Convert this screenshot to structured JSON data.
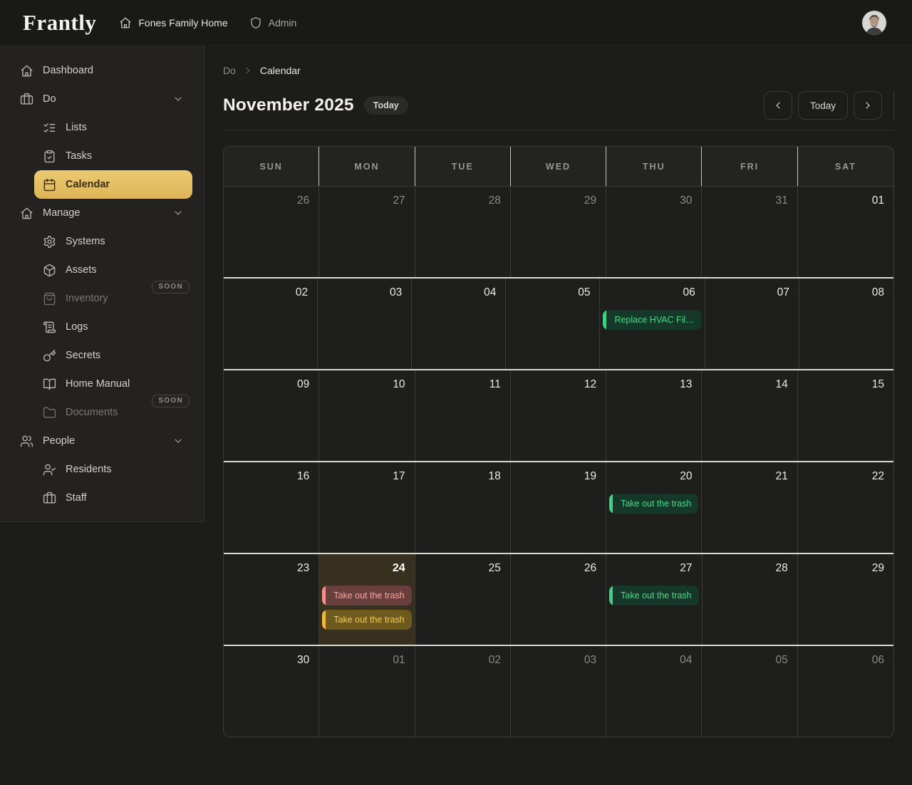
{
  "header": {
    "logo": "Frantly",
    "home_name": "Fones Family Home",
    "home_icon": "home",
    "role": "Admin",
    "role_icon": "shield"
  },
  "sidebar": {
    "items": [
      {
        "id": "dashboard",
        "label": "Dashboard",
        "icon": "home",
        "level": 1
      },
      {
        "id": "do",
        "label": "Do",
        "icon": "briefcase",
        "level": 1,
        "chevron": true
      },
      {
        "id": "lists",
        "label": "Lists",
        "icon": "list-checks",
        "level": 2
      },
      {
        "id": "tasks",
        "label": "Tasks",
        "icon": "clipboard-check",
        "level": 2
      },
      {
        "id": "calendar",
        "label": "Calendar",
        "icon": "calendar",
        "level": 2,
        "active": true
      },
      {
        "id": "manage",
        "label": "Manage",
        "icon": "home",
        "level": 1,
        "chevron": true
      },
      {
        "id": "systems",
        "label": "Systems",
        "icon": "settings",
        "level": 2
      },
      {
        "id": "assets",
        "label": "Assets",
        "icon": "package",
        "level": 2
      },
      {
        "id": "inventory",
        "label": "Inventory",
        "icon": "shopping-bag",
        "level": 2,
        "disabled": true,
        "badge": "SOON"
      },
      {
        "id": "logs",
        "label": "Logs",
        "icon": "scroll",
        "level": 2
      },
      {
        "id": "secrets",
        "label": "Secrets",
        "icon": "key",
        "level": 2
      },
      {
        "id": "home-manual",
        "label": "Home Manual",
        "icon": "book-open",
        "level": 2
      },
      {
        "id": "documents",
        "label": "Documents",
        "icon": "folder",
        "level": 2,
        "disabled": true,
        "badge": "SOON"
      },
      {
        "id": "people",
        "label": "People",
        "icon": "users",
        "level": 1,
        "chevron": true
      },
      {
        "id": "residents",
        "label": "Residents",
        "icon": "user-check",
        "level": 2
      },
      {
        "id": "staff",
        "label": "Staff",
        "icon": "briefcase",
        "level": 2
      }
    ]
  },
  "breadcrumb": {
    "parent": "Do",
    "current": "Calendar"
  },
  "calendar": {
    "title": "November 2025",
    "today_badge": "Today",
    "nav": {
      "prev_icon": "chevron-left",
      "today_label": "Today",
      "next_icon": "chevron-right"
    },
    "weekdays": [
      "SUN",
      "MON",
      "TUE",
      "WED",
      "THU",
      "FRI",
      "SAT"
    ],
    "weeks": [
      {
        "days": [
          {
            "n": "26",
            "muted": true
          },
          {
            "n": "27",
            "muted": true
          },
          {
            "n": "28",
            "muted": true
          },
          {
            "n": "29",
            "muted": true
          },
          {
            "n": "30",
            "muted": true
          },
          {
            "n": "31",
            "muted": true
          },
          {
            "n": "01"
          }
        ]
      },
      {
        "days": [
          {
            "n": "02"
          },
          {
            "n": "03"
          },
          {
            "n": "04"
          },
          {
            "n": "05"
          },
          {
            "n": "06",
            "events": [
              {
                "label": "Replace HVAC Fil…",
                "color": "green"
              }
            ]
          },
          {
            "n": "07"
          },
          {
            "n": "08"
          }
        ]
      },
      {
        "days": [
          {
            "n": "09"
          },
          {
            "n": "10"
          },
          {
            "n": "11"
          },
          {
            "n": "12"
          },
          {
            "n": "13"
          },
          {
            "n": "14"
          },
          {
            "n": "15"
          }
        ]
      },
      {
        "days": [
          {
            "n": "16"
          },
          {
            "n": "17"
          },
          {
            "n": "18"
          },
          {
            "n": "19"
          },
          {
            "n": "20",
            "events": [
              {
                "label": "Take out the trash",
                "color": "green"
              }
            ]
          },
          {
            "n": "21"
          },
          {
            "n": "22"
          }
        ]
      },
      {
        "days": [
          {
            "n": "23"
          },
          {
            "n": "24",
            "today": true,
            "events": [
              {
                "label": "Take out the trash",
                "color": "red"
              },
              {
                "label": "Take out the trash",
                "color": "yellow"
              }
            ]
          },
          {
            "n": "25"
          },
          {
            "n": "26"
          },
          {
            "n": "27",
            "events": [
              {
                "label": "Take out the trash",
                "color": "green"
              }
            ]
          },
          {
            "n": "28"
          },
          {
            "n": "29"
          }
        ]
      },
      {
        "days": [
          {
            "n": "30"
          },
          {
            "n": "01",
            "muted": true
          },
          {
            "n": "02",
            "muted": true
          },
          {
            "n": "03",
            "muted": true
          },
          {
            "n": "04",
            "muted": true
          },
          {
            "n": "05",
            "muted": true
          },
          {
            "n": "06",
            "muted": true
          }
        ]
      }
    ]
  },
  "colors": {
    "accent": "#e6c164",
    "today_cell_bg": "#37301f",
    "events": {
      "green": {
        "bg": "#16382a",
        "bar": "#3fd085",
        "text": "#46db86"
      },
      "red": {
        "bg": "#693f3d",
        "bar": "#f1908d",
        "text": "#ffa49e"
      },
      "yellow": {
        "bg": "#6f5a1d",
        "bar": "#efba3f",
        "text": "#f5c94f"
      }
    }
  }
}
